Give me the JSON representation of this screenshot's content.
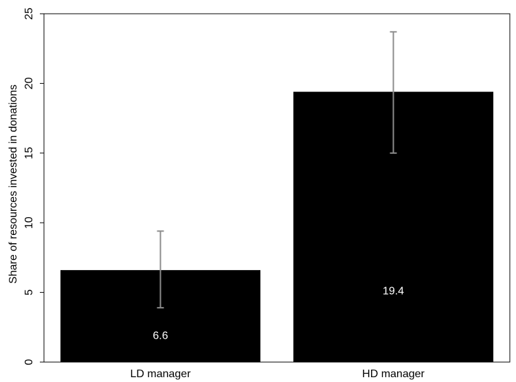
{
  "chart_data": {
    "type": "bar",
    "categories": [
      "LD manager",
      "HD manager"
    ],
    "values": [
      6.6,
      19.4
    ],
    "value_labels": [
      "6.6",
      "19.4"
    ],
    "error_bars": [
      {
        "low": 3.9,
        "high": 9.4
      },
      {
        "low": 15.0,
        "high": 23.7
      }
    ],
    "title": "",
    "xlabel": "",
    "ylabel": "Share of resources invested in donations",
    "ylim": [
      0,
      25
    ],
    "yticks": [
      0,
      5,
      10,
      15,
      20,
      25
    ],
    "grid": false,
    "legend": "none",
    "colors": {
      "bar": "#000000",
      "error_bar": "#8c8c8c",
      "data_label": "#ffffff",
      "axis": "#000000"
    }
  }
}
